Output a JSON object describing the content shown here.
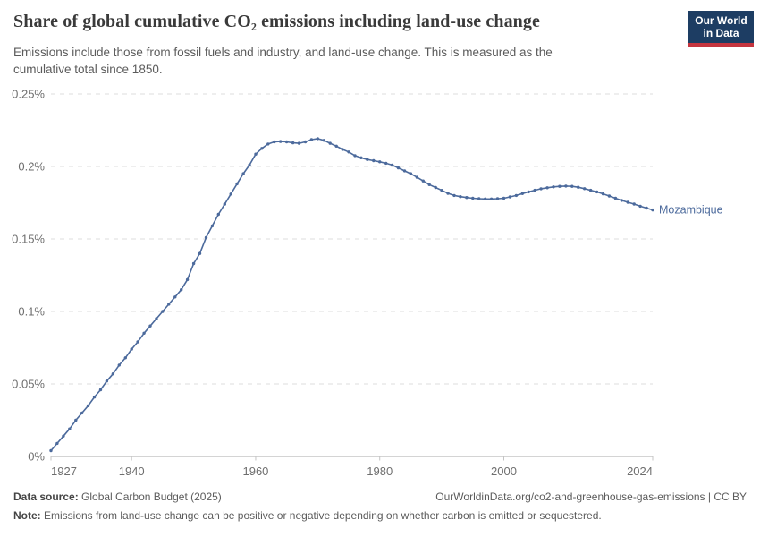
{
  "header": {
    "title": "Share of global cumulative CO₂ emissions including land-use change",
    "subtitle": "Emissions include those from fossil fuels and industry, and land-use change. This is measured as the cumulative total since 1850.",
    "logo": {
      "line1": "Our World",
      "line2": "in Data",
      "navy": "#1d3d63",
      "red": "#c5353f"
    }
  },
  "chart_data": {
    "type": "line",
    "title": "Share of global cumulative CO₂ emissions including land-use change",
    "xlabel": "",
    "ylabel": "",
    "xlim": [
      1927,
      2024
    ],
    "ylim": [
      0,
      0.25
    ],
    "x_ticks": [
      1927,
      1940,
      1960,
      1980,
      2000,
      2024
    ],
    "y_ticks": [
      0,
      0.05,
      0.1,
      0.15,
      0.2,
      0.25
    ],
    "y_tick_labels": [
      "0%",
      "0.05%",
      "0.1%",
      "0.15%",
      "0.2%",
      "0.25%"
    ],
    "grid": "horizontal-dashed",
    "legend_position": "end-of-line-label",
    "series": [
      {
        "name": "Mozambique",
        "color": "#4C6A9C",
        "unit": "%",
        "x": [
          1927,
          1928,
          1929,
          1930,
          1931,
          1932,
          1933,
          1934,
          1935,
          1936,
          1937,
          1938,
          1939,
          1940,
          1941,
          1942,
          1943,
          1944,
          1945,
          1946,
          1947,
          1948,
          1949,
          1950,
          1951,
          1952,
          1953,
          1954,
          1955,
          1956,
          1957,
          1958,
          1959,
          1960,
          1961,
          1962,
          1963,
          1964,
          1965,
          1966,
          1967,
          1968,
          1969,
          1970,
          1971,
          1972,
          1973,
          1974,
          1975,
          1976,
          1977,
          1978,
          1979,
          1980,
          1981,
          1982,
          1983,
          1984,
          1985,
          1986,
          1987,
          1988,
          1989,
          1990,
          1991,
          1992,
          1993,
          1994,
          1995,
          1996,
          1997,
          1998,
          1999,
          2000,
          2001,
          2002,
          2003,
          2004,
          2005,
          2006,
          2007,
          2008,
          2009,
          2010,
          2011,
          2012,
          2013,
          2014,
          2015,
          2016,
          2017,
          2018,
          2019,
          2020,
          2021,
          2022,
          2023,
          2024
        ],
        "values": [
          0.004,
          0.009,
          0.014,
          0.019,
          0.025,
          0.03,
          0.035,
          0.041,
          0.046,
          0.052,
          0.057,
          0.063,
          0.068,
          0.074,
          0.079,
          0.085,
          0.09,
          0.095,
          0.1,
          0.105,
          0.11,
          0.115,
          0.122,
          0.133,
          0.14,
          0.151,
          0.159,
          0.167,
          0.174,
          0.181,
          0.188,
          0.195,
          0.201,
          0.2085,
          0.2125,
          0.2155,
          0.217,
          0.2172,
          0.217,
          0.2163,
          0.216,
          0.217,
          0.2185,
          0.2192,
          0.218,
          0.216,
          0.214,
          0.2118,
          0.21,
          0.2075,
          0.206,
          0.2048,
          0.204,
          0.2032,
          0.2022,
          0.201,
          0.199,
          0.197,
          0.195,
          0.1925,
          0.19,
          0.1875,
          0.1855,
          0.1835,
          0.1815,
          0.18,
          0.1792,
          0.1786,
          0.1781,
          0.1778,
          0.1776,
          0.1776,
          0.1778,
          0.1781,
          0.179,
          0.18,
          0.1813,
          0.1825,
          0.1836,
          0.1846,
          0.1853,
          0.1859,
          0.1863,
          0.1865,
          0.1863,
          0.1857,
          0.1847,
          0.1836,
          0.1825,
          0.1811,
          0.1796,
          0.1781,
          0.1766,
          0.1753,
          0.1741,
          0.1726,
          0.1713,
          0.17
        ]
      }
    ]
  },
  "footer": {
    "datasource_label": "Data source:",
    "datasource_value": " Global Carbon Budget (2025)",
    "link": "OurWorldinData.org/co2-and-greenhouse-gas-emissions | CC BY",
    "note_label": "Note:",
    "note_value": " Emissions from land-use change can be positive or negative depending on whether carbon is emitted or sequestered."
  }
}
